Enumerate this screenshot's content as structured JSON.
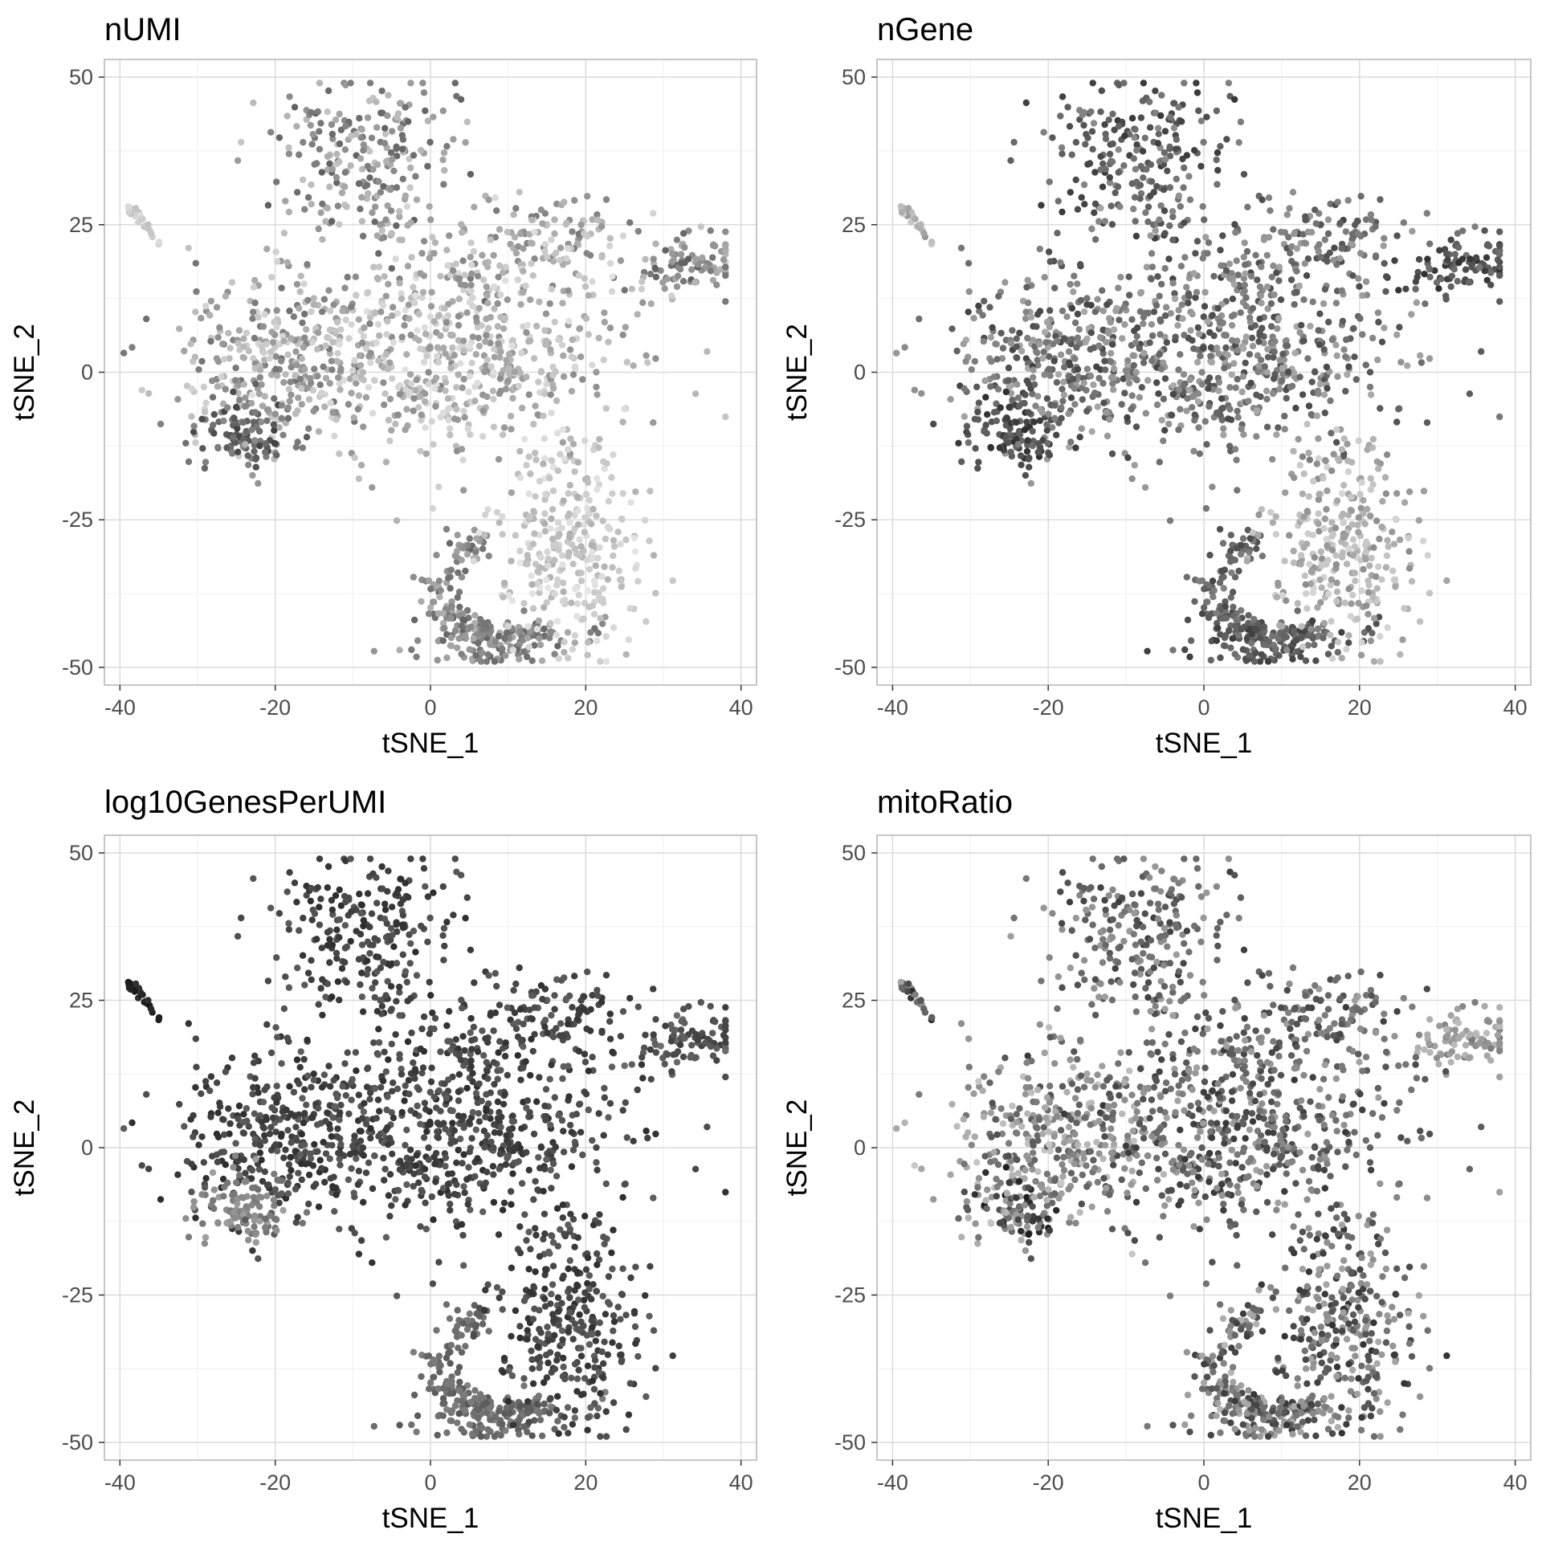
{
  "chart_data": [
    {
      "type": "scatter",
      "title": "nUMI",
      "xlabel": "tSNE_1",
      "ylabel": "tSNE_2",
      "xlim": [
        -42,
        42
      ],
      "ylim": [
        -53,
        53
      ],
      "xticks": [
        "-40",
        "-20",
        "0",
        "20",
        "40"
      ],
      "yticks": [
        "-50",
        "-25",
        "0",
        "25",
        "50"
      ],
      "grid": true,
      "point_color_scale": "grayscale (light = low, dark = high)",
      "regions": [
        {
          "name": "top-arm",
          "cx": -9,
          "cy": 34,
          "sx": 5.5,
          "sy": 8,
          "n": 240,
          "gray": [
            95,
            200
          ]
        },
        {
          "name": "upper-right-lobe",
          "cx": 14,
          "cy": 22,
          "sx": 7,
          "sy": 4,
          "n": 120,
          "gray": [
            120,
            215
          ]
        },
        {
          "name": "right-arm",
          "cx": 33,
          "cy": 18,
          "sx": 3.5,
          "sy": 2.5,
          "n": 90,
          "gray": [
            95,
            185
          ]
        },
        {
          "name": "left-region",
          "cx": -20,
          "cy": 3,
          "sx": 7,
          "sy": 7,
          "n": 330,
          "gray": [
            110,
            215
          ]
        },
        {
          "name": "lower-left-patch",
          "cx": -24,
          "cy": -10,
          "sx": 3.5,
          "sy": 3,
          "n": 100,
          "gray": [
            65,
            140
          ]
        },
        {
          "name": "center-body",
          "cx": 5,
          "cy": 4,
          "sx": 10,
          "sy": 9,
          "n": 620,
          "gray": [
            140,
            225
          ]
        },
        {
          "name": "lower-left-ring",
          "cx": 2,
          "cy": -36,
          "sx": 3.5,
          "sy": 6,
          "n": 170,
          "gray": [
            100,
            175
          ]
        },
        {
          "name": "bottom-ring",
          "cx": 8,
          "cy": -45,
          "sx": 5,
          "sy": 2,
          "n": 110,
          "gray": [
            100,
            175
          ]
        },
        {
          "name": "lower-right-lobe",
          "cx": 18,
          "cy": -30,
          "sx": 4.5,
          "sy": 8,
          "n": 300,
          "gray": [
            175,
            230
          ]
        },
        {
          "name": "isolated-cluster",
          "cx": -37,
          "cy": 25.5,
          "sx": 1,
          "sy": 1.6,
          "n": 25,
          "gray": [
            190,
            225
          ]
        }
      ]
    },
    {
      "type": "scatter",
      "title": "nGene",
      "xlabel": "tSNE_1",
      "ylabel": "tSNE_2",
      "xlim": [
        -42,
        42
      ],
      "ylim": [
        -53,
        53
      ],
      "xticks": [
        "-40",
        "-20",
        "0",
        "20",
        "40"
      ],
      "yticks": [
        "-50",
        "-25",
        "0",
        "25",
        "50"
      ],
      "grid": true,
      "point_color_scale": "grayscale (light = low, dark = high)",
      "regions": [
        {
          "name": "top-arm",
          "cx": -9,
          "cy": 34,
          "sx": 5.5,
          "sy": 8,
          "n": 240,
          "gray": [
            55,
            140
          ]
        },
        {
          "name": "upper-right-lobe",
          "cx": 14,
          "cy": 22,
          "sx": 7,
          "sy": 4,
          "n": 120,
          "gray": [
            70,
            160
          ]
        },
        {
          "name": "right-arm",
          "cx": 33,
          "cy": 18,
          "sx": 3.5,
          "sy": 2.5,
          "n": 90,
          "gray": [
            45,
            120
          ]
        },
        {
          "name": "left-region",
          "cx": -20,
          "cy": 3,
          "sx": 7,
          "sy": 7,
          "n": 330,
          "gray": [
            65,
            170
          ]
        },
        {
          "name": "lower-left-patch",
          "cx": -24,
          "cy": -10,
          "sx": 3.5,
          "sy": 3,
          "n": 100,
          "gray": [
            45,
            110
          ]
        },
        {
          "name": "center-body",
          "cx": 5,
          "cy": 4,
          "sx": 10,
          "sy": 9,
          "n": 620,
          "gray": [
            70,
            170
          ]
        },
        {
          "name": "lower-left-ring",
          "cx": 2,
          "cy": -36,
          "sx": 3.5,
          "sy": 6,
          "n": 170,
          "gray": [
            70,
            130
          ]
        },
        {
          "name": "bottom-ring",
          "cx": 8,
          "cy": -45,
          "sx": 5,
          "sy": 2,
          "n": 110,
          "gray": [
            60,
            120
          ]
        },
        {
          "name": "lower-right-lobe",
          "cx": 18,
          "cy": -30,
          "sx": 4.5,
          "sy": 8,
          "n": 300,
          "gray": [
            140,
            215
          ]
        },
        {
          "name": "isolated-cluster",
          "cx": -37,
          "cy": 25.5,
          "sx": 1,
          "sy": 1.6,
          "n": 25,
          "gray": [
            150,
            210
          ]
        }
      ]
    },
    {
      "type": "scatter",
      "title": "log10GenesPerUMI",
      "xlabel": "tSNE_1",
      "ylabel": "tSNE_2",
      "xlim": [
        -42,
        42
      ],
      "ylim": [
        -53,
        53
      ],
      "xticks": [
        "-40",
        "-20",
        "0",
        "20",
        "40"
      ],
      "yticks": [
        "-50",
        "-25",
        "0",
        "25",
        "50"
      ],
      "grid": true,
      "point_color_scale": "grayscale (light = low, dark = high)",
      "regions": [
        {
          "name": "top-arm",
          "cx": -9,
          "cy": 34,
          "sx": 5.5,
          "sy": 8,
          "n": 240,
          "gray": [
            45,
            90
          ]
        },
        {
          "name": "upper-right-lobe",
          "cx": 14,
          "cy": 22,
          "sx": 7,
          "sy": 4,
          "n": 120,
          "gray": [
            50,
            95
          ]
        },
        {
          "name": "right-arm",
          "cx": 33,
          "cy": 18,
          "sx": 3.5,
          "sy": 2.5,
          "n": 90,
          "gray": [
            60,
            110
          ]
        },
        {
          "name": "left-region",
          "cx": -20,
          "cy": 3,
          "sx": 7,
          "sy": 7,
          "n": 330,
          "gray": [
            45,
            95
          ]
        },
        {
          "name": "lower-left-patch",
          "cx": -24,
          "cy": -10,
          "sx": 3.5,
          "sy": 3,
          "n": 100,
          "gray": [
            110,
            160
          ]
        },
        {
          "name": "center-body",
          "cx": 5,
          "cy": 4,
          "sx": 10,
          "sy": 9,
          "n": 620,
          "gray": [
            45,
            95
          ]
        },
        {
          "name": "lower-left-ring",
          "cx": 2,
          "cy": -36,
          "sx": 3.5,
          "sy": 6,
          "n": 170,
          "gray": [
            90,
            130
          ]
        },
        {
          "name": "bottom-ring",
          "cx": 8,
          "cy": -45,
          "sx": 5,
          "sy": 2,
          "n": 110,
          "gray": [
            85,
            125
          ]
        },
        {
          "name": "lower-right-lobe",
          "cx": 18,
          "cy": -30,
          "sx": 4.5,
          "sy": 8,
          "n": 300,
          "gray": [
            45,
            95
          ]
        },
        {
          "name": "isolated-cluster",
          "cx": -37,
          "cy": 25.5,
          "sx": 1,
          "sy": 1.6,
          "n": 25,
          "gray": [
            20,
            50
          ]
        }
      ]
    },
    {
      "type": "scatter",
      "title": "mitoRatio",
      "xlabel": "tSNE_1",
      "ylabel": "tSNE_2",
      "xlim": [
        -42,
        42
      ],
      "ylim": [
        -53,
        53
      ],
      "xticks": [
        "-40",
        "-20",
        "0",
        "20",
        "40"
      ],
      "yticks": [
        "-50",
        "-25",
        "0",
        "25",
        "50"
      ],
      "grid": true,
      "point_color_scale": "grayscale (light = low, dark = high)",
      "regions": [
        {
          "name": "top-arm",
          "cx": -9,
          "cy": 34,
          "sx": 5.5,
          "sy": 8,
          "n": 240,
          "gray": [
            60,
            160
          ]
        },
        {
          "name": "upper-right-lobe",
          "cx": 14,
          "cy": 22,
          "sx": 7,
          "sy": 4,
          "n": 120,
          "gray": [
            60,
            160
          ]
        },
        {
          "name": "right-arm",
          "cx": 33,
          "cy": 18,
          "sx": 3.5,
          "sy": 2.5,
          "n": 90,
          "gray": [
            120,
            190
          ]
        },
        {
          "name": "left-region",
          "cx": -20,
          "cy": 3,
          "sx": 7,
          "sy": 7,
          "n": 330,
          "gray": [
            80,
            200
          ]
        },
        {
          "name": "lower-left-patch",
          "cx": -24,
          "cy": -10,
          "sx": 3.5,
          "sy": 3,
          "n": 100,
          "gray": [
            25,
            200
          ]
        },
        {
          "name": "center-body",
          "cx": 5,
          "cy": 4,
          "sx": 10,
          "sy": 9,
          "n": 620,
          "gray": [
            55,
            165
          ]
        },
        {
          "name": "lower-left-ring",
          "cx": 2,
          "cy": -36,
          "sx": 3.5,
          "sy": 6,
          "n": 170,
          "gray": [
            60,
            185
          ]
        },
        {
          "name": "bottom-ring",
          "cx": 8,
          "cy": -45,
          "sx": 5,
          "sy": 2,
          "n": 110,
          "gray": [
            55,
            175
          ]
        },
        {
          "name": "lower-right-lobe",
          "cx": 18,
          "cy": -30,
          "sx": 4.5,
          "sy": 8,
          "n": 300,
          "gray": [
            50,
            170
          ]
        },
        {
          "name": "isolated-cluster",
          "cx": -37,
          "cy": 25.5,
          "sx": 1,
          "sy": 1.6,
          "n": 25,
          "gray": [
            40,
            220
          ]
        }
      ]
    }
  ],
  "colors": {
    "panel_background": "#ffffff",
    "panel_border": "#b3b3b3",
    "grid_major": "#dcdcdc",
    "grid_minor": "#efefef",
    "tick_text": "#4d4d4d",
    "axis_title": "#000000"
  }
}
